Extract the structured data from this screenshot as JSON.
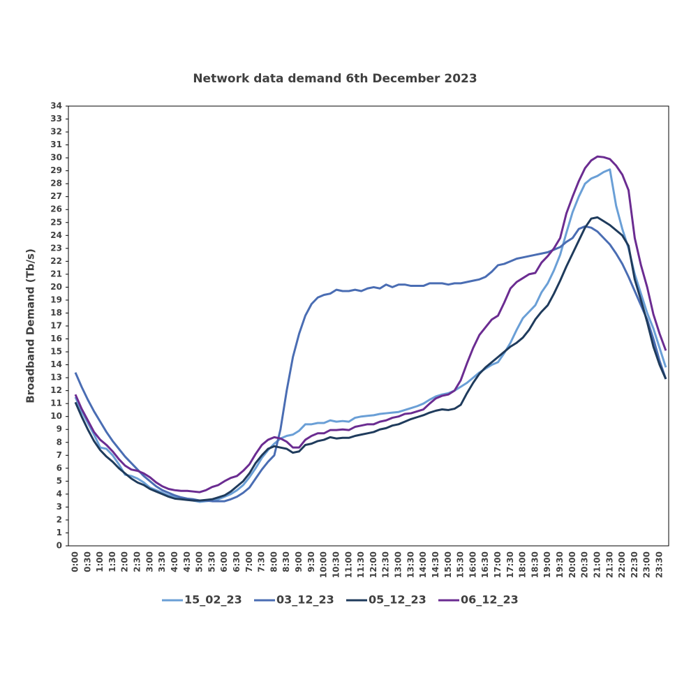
{
  "chart_data": {
    "type": "line",
    "title": "Network data demand 6th December 2023",
    "y_label": "Broadband Demand (Tb/s)",
    "categories": [
      "0:00",
      null,
      "0:30",
      null,
      "1:00",
      null,
      "1:30",
      null,
      "2:00",
      null,
      "2:30",
      null,
      "3:00",
      null,
      "3:30",
      null,
      "4:00",
      null,
      "4:30",
      null,
      "5:00",
      null,
      "5:30",
      null,
      "6:00",
      null,
      "6:30",
      null,
      "7:00",
      null,
      "7:30",
      null,
      "8:00",
      null,
      "8:30",
      null,
      "9:00",
      null,
      "9:30",
      null,
      "10:00",
      null,
      "10:30",
      null,
      "11:00",
      null,
      "11:30",
      null,
      "12:00",
      null,
      "12:30",
      null,
      "13:00",
      null,
      "13:30",
      null,
      "14:00",
      null,
      "14:30",
      null,
      "15:00",
      null,
      "15:30",
      null,
      "16:00",
      null,
      "16:30",
      null,
      "17:00",
      null,
      "17:30",
      null,
      "18:00",
      null,
      "18:30",
      null,
      "19:00",
      null,
      "19:30",
      null,
      "20:00",
      null,
      "20:30",
      null,
      "21:00",
      null,
      "21:30",
      null,
      "22:00",
      null,
      "22:30",
      null,
      "23:00",
      null,
      "23:30",
      null
    ],
    "ylim": [
      0,
      34
    ],
    "yticks": [
      0,
      1,
      2,
      3,
      4,
      5,
      6,
      7,
      8,
      9,
      10,
      11,
      12,
      13,
      14,
      15,
      16,
      17,
      18,
      19,
      20,
      21,
      22,
      23,
      24,
      25,
      26,
      27,
      28,
      29,
      30,
      31,
      32,
      33,
      34
    ],
    "legend": "bottom",
    "series": [
      {
        "name": "15_02_23",
        "color": "#6a9fd6",
        "values": [
          11.5,
          10.4,
          9.5,
          8.6,
          7.6,
          7.5,
          7.0,
          6.3,
          5.5,
          5.4,
          5.2,
          4.9,
          4.5,
          4.3,
          4.1,
          3.9,
          3.8,
          3.7,
          3.6,
          3.5,
          3.4,
          3.45,
          3.5,
          3.6,
          3.8,
          4.0,
          4.3,
          4.7,
          5.3,
          6.0,
          6.8,
          7.4,
          7.9,
          8.3,
          8.5,
          8.6,
          8.9,
          9.4,
          9.4,
          9.5,
          9.5,
          9.7,
          9.6,
          9.65,
          9.6,
          9.9,
          10.0,
          10.05,
          10.1,
          10.2,
          10.25,
          10.3,
          10.35,
          10.5,
          10.65,
          10.8,
          11.0,
          11.3,
          11.55,
          11.7,
          11.8,
          12.0,
          12.3,
          12.6,
          13.0,
          13.4,
          13.7,
          14.0,
          14.2,
          14.9,
          15.7,
          16.7,
          17.6,
          18.1,
          18.6,
          19.6,
          20.3,
          21.3,
          22.5,
          24.2,
          25.8,
          27.0,
          28.0,
          28.4,
          28.6,
          28.9,
          29.1,
          26.3,
          24.5,
          23.0,
          21.0,
          19.5,
          18.0,
          16.8,
          15.3,
          13.8
        ]
      },
      {
        "name": "03_12_23",
        "color": "#4a6db3",
        "values": [
          13.4,
          12.3,
          11.3,
          10.4,
          9.6,
          8.8,
          8.1,
          7.5,
          6.9,
          6.4,
          5.9,
          5.4,
          5.0,
          4.6,
          4.3,
          4.1,
          3.9,
          3.75,
          3.65,
          3.6,
          3.5,
          3.5,
          3.45,
          3.45,
          3.45,
          3.6,
          3.8,
          4.1,
          4.5,
          5.2,
          5.9,
          6.5,
          7.0,
          9.0,
          12.0,
          14.6,
          16.4,
          17.8,
          18.7,
          19.2,
          19.4,
          19.5,
          19.8,
          19.7,
          19.7,
          19.8,
          19.7,
          19.9,
          20.0,
          19.9,
          20.2,
          20.0,
          20.2,
          20.2,
          20.1,
          20.1,
          20.1,
          20.3,
          20.3,
          20.3,
          20.2,
          20.3,
          20.3,
          20.4,
          20.5,
          20.6,
          20.8,
          21.2,
          21.7,
          21.8,
          22.0,
          22.2,
          22.3,
          22.4,
          22.5,
          22.6,
          22.7,
          22.9,
          23.1,
          23.5,
          23.8,
          24.5,
          24.7,
          24.6,
          24.3,
          23.8,
          23.3,
          22.6,
          21.8,
          20.8,
          19.7,
          18.6,
          17.5,
          16.0,
          14.3,
          12.9
        ]
      },
      {
        "name": "05_12_23",
        "color": "#1f3b5c",
        "values": [
          11.1,
          10.0,
          9.0,
          8.1,
          7.4,
          6.9,
          6.5,
          6.0,
          5.6,
          5.2,
          4.9,
          4.7,
          4.4,
          4.2,
          4.0,
          3.8,
          3.65,
          3.6,
          3.55,
          3.5,
          3.5,
          3.55,
          3.6,
          3.75,
          3.9,
          4.2,
          4.6,
          5.0,
          5.6,
          6.4,
          7.0,
          7.5,
          7.7,
          7.6,
          7.5,
          7.2,
          7.3,
          7.8,
          7.9,
          8.1,
          8.2,
          8.4,
          8.3,
          8.35,
          8.35,
          8.5,
          8.6,
          8.7,
          8.8,
          9.0,
          9.1,
          9.3,
          9.4,
          9.6,
          9.8,
          9.95,
          10.1,
          10.3,
          10.45,
          10.55,
          10.5,
          10.6,
          10.9,
          11.8,
          12.6,
          13.3,
          13.8,
          14.2,
          14.6,
          15.0,
          15.4,
          15.7,
          16.1,
          16.7,
          17.5,
          18.1,
          18.6,
          19.5,
          20.5,
          21.6,
          22.6,
          23.6,
          24.6,
          25.3,
          25.4,
          25.1,
          24.8,
          24.4,
          24.0,
          23.2,
          20.6,
          19.0,
          17.3,
          15.4,
          14.0,
          12.9
        ]
      },
      {
        "name": "06_12_23",
        "color": "#6b2c91",
        "values": [
          11.7,
          10.6,
          9.7,
          8.8,
          8.2,
          7.8,
          7.3,
          6.7,
          6.2,
          5.9,
          5.8,
          5.6,
          5.3,
          4.9,
          4.6,
          4.4,
          4.3,
          4.25,
          4.25,
          4.2,
          4.15,
          4.3,
          4.55,
          4.7,
          5.0,
          5.25,
          5.4,
          5.8,
          6.3,
          7.1,
          7.8,
          8.2,
          8.4,
          8.3,
          8.05,
          7.6,
          7.6,
          8.2,
          8.5,
          8.7,
          8.7,
          8.95,
          8.95,
          9.0,
          8.95,
          9.2,
          9.3,
          9.4,
          9.4,
          9.6,
          9.7,
          9.9,
          10.0,
          10.2,
          10.25,
          10.4,
          10.55,
          11.0,
          11.4,
          11.6,
          11.7,
          12.0,
          12.8,
          14.1,
          15.3,
          16.3,
          16.9,
          17.5,
          17.8,
          18.8,
          19.9,
          20.4,
          20.7,
          21.0,
          21.1,
          21.9,
          22.4,
          23.0,
          23.8,
          25.7,
          27.0,
          28.2,
          29.2,
          29.8,
          30.1,
          30.05,
          29.9,
          29.4,
          28.7,
          27.5,
          23.8,
          21.7,
          20.0,
          17.9,
          16.4,
          15.1
        ]
      }
    ]
  }
}
